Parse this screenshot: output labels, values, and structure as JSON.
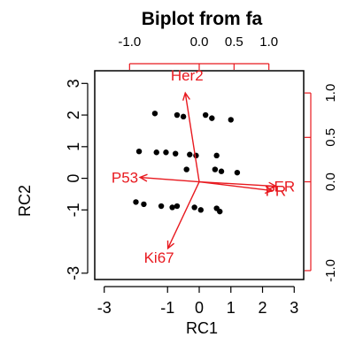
{
  "chart_data": {
    "type": "scatter",
    "title": "Biplot from fa",
    "xlabel": "RC1",
    "ylabel": "RC2",
    "xlim": [
      -3.3,
      3.3
    ],
    "ylim": [
      -3.2,
      3.4
    ],
    "x_ticks": [
      "-3",
      "-1",
      "0",
      "1",
      "2",
      "3"
    ],
    "x_tick_values": [
      -3,
      -1,
      0,
      1,
      2,
      3
    ],
    "y_ticks": [
      "-3",
      "-1",
      "0",
      "1",
      "2",
      "3"
    ],
    "y_tick_values": [
      -3,
      -1,
      0,
      1,
      2,
      3
    ],
    "top_axis": {
      "lim": [
        -1.5,
        1.5
      ],
      "ticks": [
        "-1.0",
        "0.0",
        "0.5",
        "1.0"
      ],
      "tick_values": [
        -1.0,
        0.0,
        0.5,
        1.0
      ]
    },
    "right_axis": {
      "lim": [
        -1.1,
        1.25
      ],
      "ticks": [
        "-1.0",
        "0.0",
        "0.5",
        "1.0"
      ],
      "tick_values": [
        -1.0,
        0.0,
        0.5,
        1.0
      ]
    },
    "points": [
      {
        "x": -1.4,
        "y": 2.05
      },
      {
        "x": -0.7,
        "y": 2.0
      },
      {
        "x": -0.5,
        "y": 1.95
      },
      {
        "x": 0.2,
        "y": 2.0
      },
      {
        "x": 0.4,
        "y": 1.9
      },
      {
        "x": 1.0,
        "y": 1.85
      },
      {
        "x": -1.9,
        "y": 0.85
      },
      {
        "x": -1.35,
        "y": 0.82
      },
      {
        "x": -1.05,
        "y": 0.82
      },
      {
        "x": -0.75,
        "y": 0.78
      },
      {
        "x": -0.3,
        "y": 0.75
      },
      {
        "x": -0.1,
        "y": 0.72
      },
      {
        "x": 0.55,
        "y": 0.72
      },
      {
        "x": -0.4,
        "y": 0.28
      },
      {
        "x": 0.5,
        "y": 0.28
      },
      {
        "x": 0.7,
        "y": 0.22
      },
      {
        "x": 1.2,
        "y": 0.18
      },
      {
        "x": -2.0,
        "y": -0.75
      },
      {
        "x": -1.75,
        "y": -0.82
      },
      {
        "x": -1.2,
        "y": -0.88
      },
      {
        "x": -0.85,
        "y": -0.92
      },
      {
        "x": -0.7,
        "y": -0.88
      },
      {
        "x": -0.15,
        "y": -0.92
      },
      {
        "x": 0.05,
        "y": -1.0
      },
      {
        "x": 0.55,
        "y": -0.95
      },
      {
        "x": 0.65,
        "y": -1.05
      }
    ],
    "arrows": [
      {
        "name": "Her2",
        "x": -0.2,
        "y": 1.0
      },
      {
        "name": "P53",
        "x": -0.85,
        "y": 0.05
      },
      {
        "name": "ER",
        "x": 1.1,
        "y": -0.05
      },
      {
        "name": "PR",
        "x": 1.05,
        "y": -0.1
      },
      {
        "name": "Ki67",
        "x": -0.45,
        "y": -0.75
      }
    ],
    "point_color": "#000000",
    "arrow_color": "#e8191f"
  }
}
